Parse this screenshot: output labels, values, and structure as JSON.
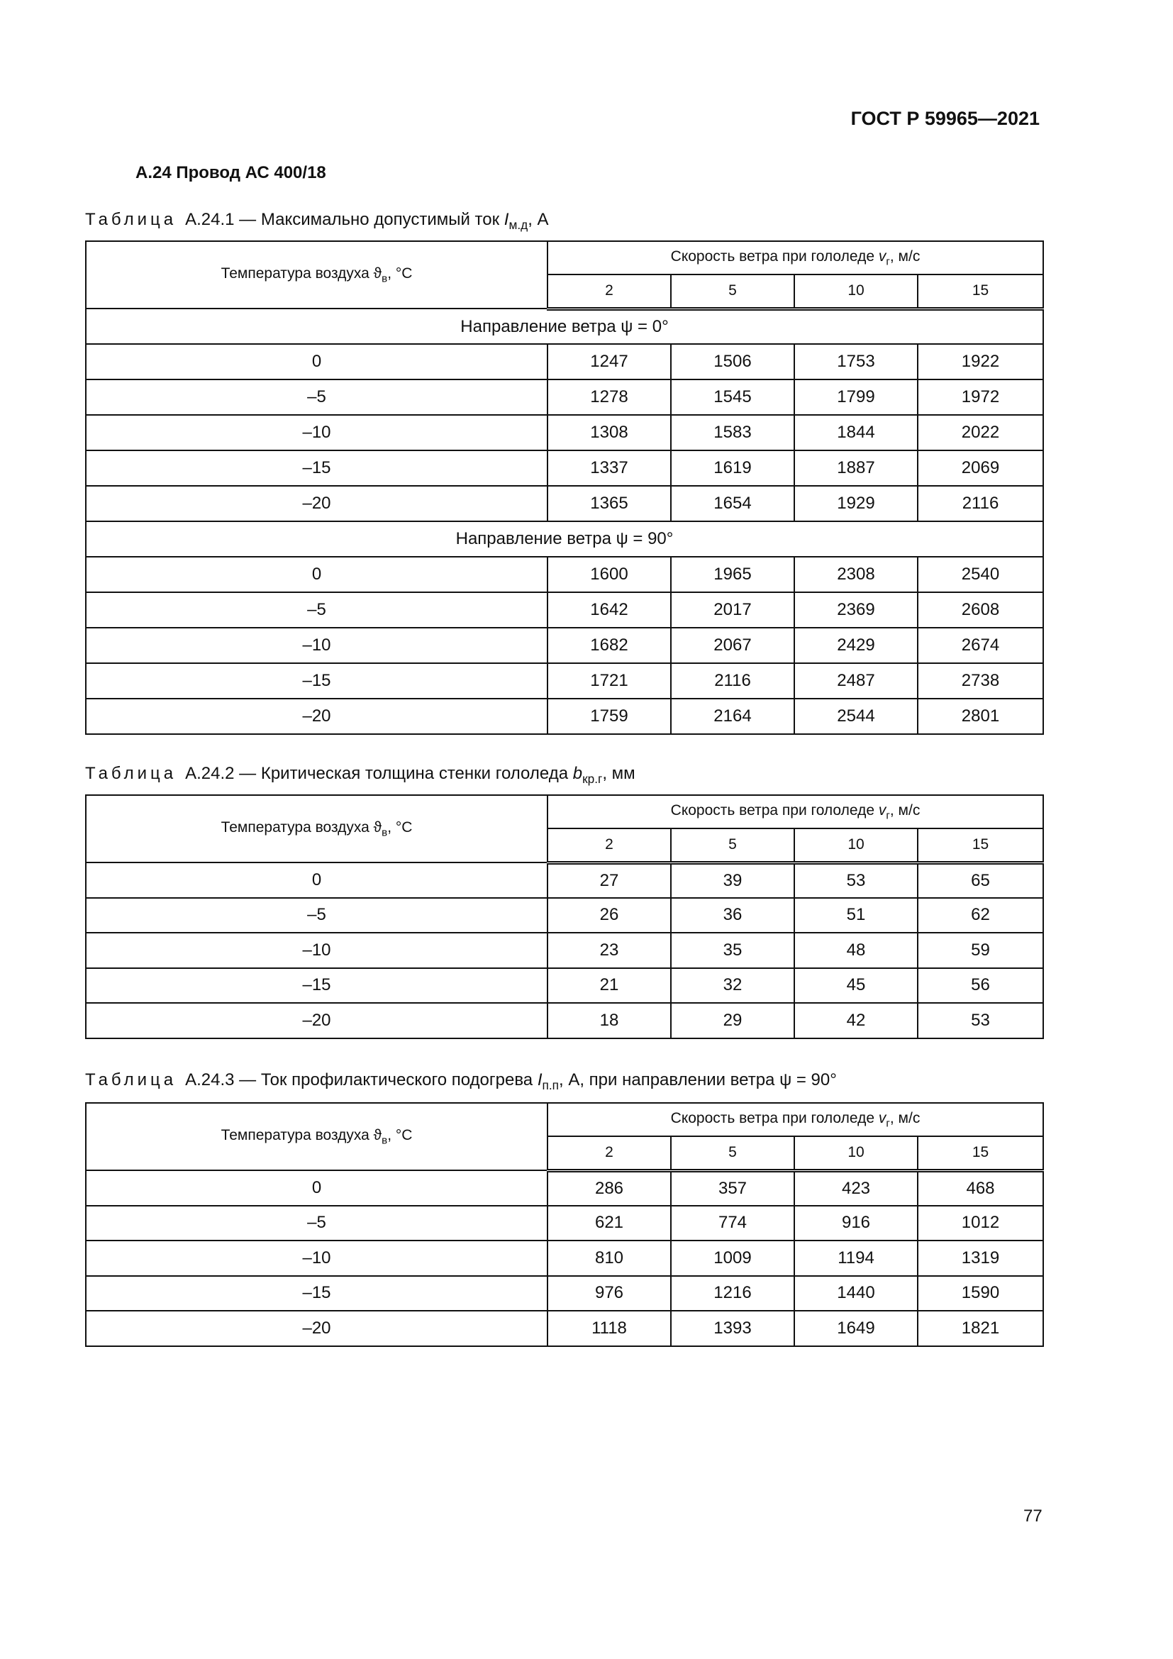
{
  "header": {
    "doc_id": "ГОСТ Р 59965—2021"
  },
  "section": {
    "title": "А.24  Провод АС 400/18"
  },
  "column_headers": {
    "temperature": {
      "text": "Температура воздуха ϑ",
      "sub": "в",
      "suffix": ", °С"
    },
    "wind_speed": {
      "text": "Скорость ветра при гололеде ",
      "sym": "v",
      "sub": "г",
      "suffix": ", м/с"
    },
    "speeds": [
      "2",
      "5",
      "10",
      "15"
    ]
  },
  "tables": [
    {
      "caption": {
        "prefix": "Таблица",
        "text": "А.24.1 — Максимально допустимый ток ",
        "sym": "I",
        "sub": "м.д",
        "suffix": ", А"
      },
      "groups": [
        {
          "label": "Направление ветра ψ = 0°",
          "rows": [
            {
              "t": "0",
              "v": [
                "1247",
                "1506",
                "1753",
                "1922"
              ]
            },
            {
              "t": "–5",
              "v": [
                "1278",
                "1545",
                "1799",
                "1972"
              ]
            },
            {
              "t": "–10",
              "v": [
                "1308",
                "1583",
                "1844",
                "2022"
              ]
            },
            {
              "t": "–15",
              "v": [
                "1337",
                "1619",
                "1887",
                "2069"
              ]
            },
            {
              "t": "–20",
              "v": [
                "1365",
                "1654",
                "1929",
                "2116"
              ]
            }
          ]
        },
        {
          "label": "Направление ветра ψ = 90°",
          "rows": [
            {
              "t": "0",
              "v": [
                "1600",
                "1965",
                "2308",
                "2540"
              ]
            },
            {
              "t": "–5",
              "v": [
                "1642",
                "2017",
                "2369",
                "2608"
              ]
            },
            {
              "t": "–10",
              "v": [
                "1682",
                "2067",
                "2429",
                "2674"
              ]
            },
            {
              "t": "–15",
              "v": [
                "1721",
                "2116",
                "2487",
                "2738"
              ]
            },
            {
              "t": "–20",
              "v": [
                "1759",
                "2164",
                "2544",
                "2801"
              ]
            }
          ]
        }
      ]
    },
    {
      "caption": {
        "prefix": "Таблица",
        "text": "А.24.2 — Критическая толщина стенки гололеда ",
        "sym": "b",
        "sub": "кр.г",
        "suffix": ", мм"
      },
      "groups": [
        {
          "label": "",
          "rows": [
            {
              "t": "0",
              "v": [
                "27",
                "39",
                "53",
                "65"
              ]
            },
            {
              "t": "–5",
              "v": [
                "26",
                "36",
                "51",
                "62"
              ]
            },
            {
              "t": "–10",
              "v": [
                "23",
                "35",
                "48",
                "59"
              ]
            },
            {
              "t": "–15",
              "v": [
                "21",
                "32",
                "45",
                "56"
              ]
            },
            {
              "t": "–20",
              "v": [
                "18",
                "29",
                "42",
                "53"
              ]
            }
          ]
        }
      ]
    },
    {
      "caption": {
        "prefix": "Таблица",
        "text": "А.24.3 — Ток профилактического подогрева ",
        "sym": "I",
        "sub": "п.п",
        "suffix": ", А, при направлении ветра ψ = 90°"
      },
      "groups": [
        {
          "label": "",
          "rows": [
            {
              "t": "0",
              "v": [
                "286",
                "357",
                "423",
                "468"
              ]
            },
            {
              "t": "–5",
              "v": [
                "621",
                "774",
                "916",
                "1012"
              ]
            },
            {
              "t": "–10",
              "v": [
                "810",
                "1009",
                "1194",
                "1319"
              ]
            },
            {
              "t": "–15",
              "v": [
                "976",
                "1216",
                "1440",
                "1590"
              ]
            },
            {
              "t": "–20",
              "v": [
                "1118",
                "1393",
                "1649",
                "1821"
              ]
            }
          ]
        }
      ]
    }
  ],
  "page_number": "77"
}
